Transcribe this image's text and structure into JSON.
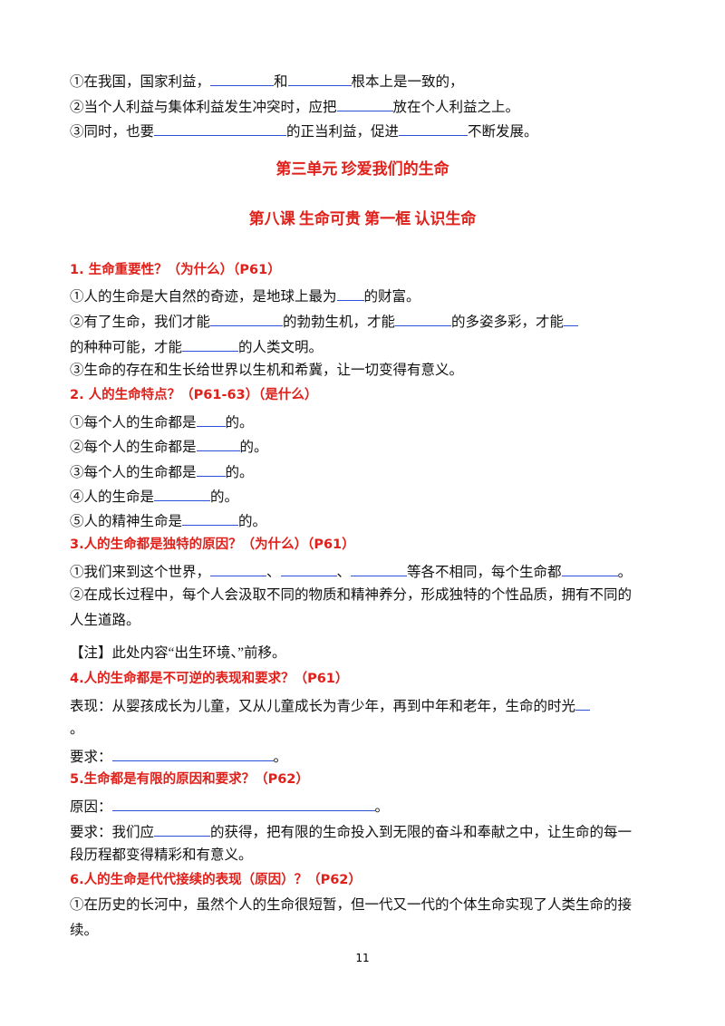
{
  "lines": [
    [
      "①在我国，国家利益，",
      "和",
      "根本上是一致的，"
    ],
    [
      "②当个人利益与集体利益发生冲突时，应把",
      "放在个人利益之上。"
    ],
    [
      "③同时，也要",
      "的正当利益，促进",
      "不断发展。"
    ],
    [
      "第三单元 珍爱我们的生命"
    ],
    [
      "第八课 生命可贵 第一框 认识生命"
    ],
    [
      "1. 生命重要性？（为什么）（P61）"
    ],
    [
      "①人的生命是大自然的奇迹，是地球上最为",
      "的财富。"
    ],
    [
      "②有了生命，我们才能",
      "的勃勃生机，才能",
      "的多姿多彩，才能"
    ],
    [
      "的种种可能，才能",
      "的人类文明。"
    ],
    [
      "③生命的存在和生长给世界以生机和希冀，让一切变得有意义。"
    ],
    [
      "2. 人的生命特点？（P61-63）（是什么）"
    ],
    [
      "①每个人的生命都是",
      "的。"
    ],
    [
      "②每个人的生命都是",
      "的。"
    ],
    [
      "③每个人的生命都是",
      "的。"
    ],
    [
      "④人的生命是",
      "的。"
    ],
    [
      "⑤人的精神生命是",
      "的。"
    ],
    [
      "3.人的生命都是独特的原因？（为什么）（P61）"
    ],
    [
      "①我们来到这个世界，",
      "、",
      "、",
      "等各不相同，每个生命都",
      "。"
    ],
    [
      "②在成长过程中，每个人会汲取不同的物质和精神养分，形成独特的个性品质，拥有不同的"
    ],
    [
      "人生道路。"
    ],
    [
      "【注】此处内容“出生环境、”前移。"
    ],
    [
      "4.人的生命都是不可逆的表现和要求？（P61）"
    ],
    [
      "表现：从婴孩成长为儿童，又从儿童成长为青少年，再到中年和老年，生命的时光"
    ],
    [
      "。"
    ],
    [
      "要求：",
      "。"
    ],
    [
      "5.生命都是有限的原因和要求？（P62）"
    ],
    [
      "原因：",
      "。"
    ],
    [
      "要求：我们应",
      "的获得，把有限的生命投入到无限的奋斗和奉献之中，让生命的每一"
    ],
    [
      "段历程都变得精彩和有意义。"
    ],
    [
      "6.人的生命是代代接续的表现（原因）？（P62）"
    ],
    [
      "①在历史的长河中，虽然个人的生命很短暂，但一代又一代的个体生命实现了人类生命的接"
    ],
    [
      "续。"
    ]
  ],
  "page_number": "11"
}
